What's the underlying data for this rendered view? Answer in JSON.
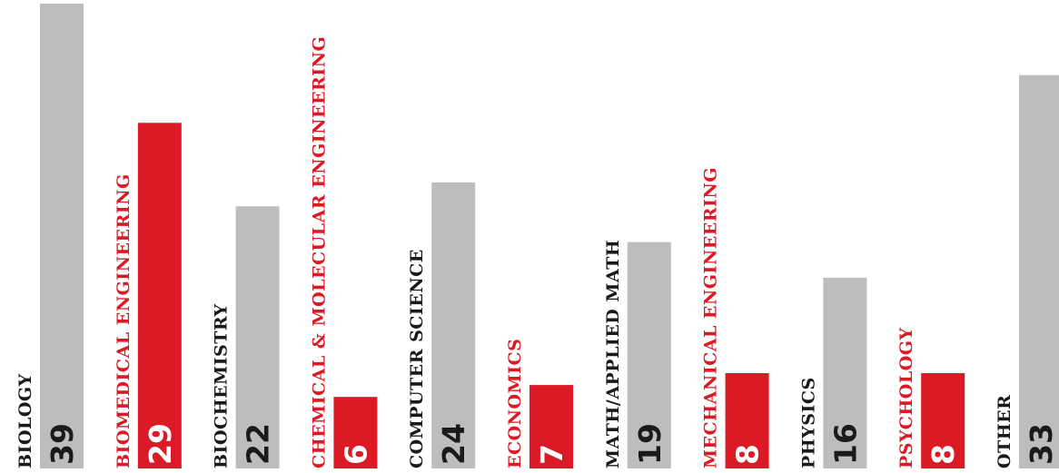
{
  "chart_data": {
    "type": "bar",
    "orientation": "vertical",
    "categories": [
      "BIOLOGY",
      "BIOMEDICAL ENGINEERING",
      "BIOCHEMISTRY",
      "CHEMICAL & MOLECULAR ENGINEERING",
      "COMPUTER SCIENCE",
      "ECONOMICS",
      "MATH/APPLIED MATH",
      "MECHANICAL ENGINEERING",
      "PHYSICS",
      "PSYCHOLOGY",
      "OTHER"
    ],
    "values": [
      39,
      29,
      22,
      6,
      24,
      7,
      19,
      8,
      16,
      8,
      33
    ],
    "highlighted": [
      false,
      true,
      false,
      true,
      false,
      true,
      false,
      true,
      false,
      true,
      false
    ],
    "title": "",
    "xlabel": "",
    "ylabel": "",
    "ylim": [
      0,
      39
    ],
    "grid": false,
    "legend": "none",
    "value_labels": "inside bar base, rotated",
    "category_labels": "rotated, left of bar"
  },
  "colors": {
    "default_bar": "#bdbdbd",
    "highlight_bar": "#dc1a25",
    "default_label": "#1a1a1a",
    "highlight_label": "#dc1a25",
    "value_on_default": "#1a1a1a",
    "value_on_highlight": "#ffffff",
    "background": "#ffffff"
  }
}
